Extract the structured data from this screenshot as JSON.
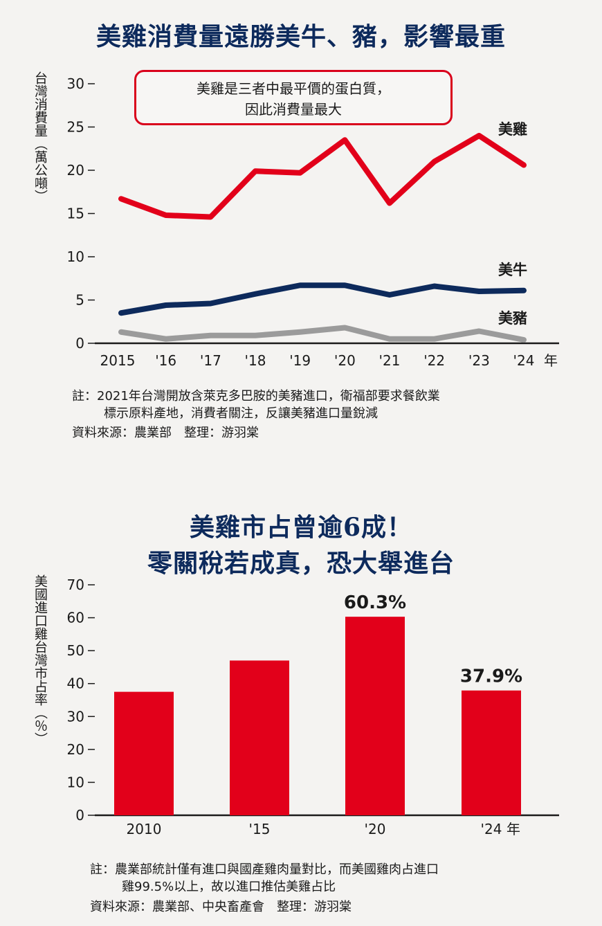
{
  "chart1": {
    "title": "美雞消費量遠勝美牛、豬，影響最重",
    "ylabel": "台灣消費量（萬公噸）",
    "annotation_line1": "美雞是三者中最平價的蛋白質，",
    "annotation_line2": "因此消費量最大",
    "note_line1": "註：2021年台灣開放含萊克多巴胺的美豬進口，衛福部要求餐飲業",
    "note_line2": "標示原料產地，消費者關注，反讓美豬進口量銳減",
    "source": "資料來源：農業部　整理：游羽棠",
    "colors": {
      "chicken": "#e2001a",
      "beef": "#0d2a5c",
      "pork": "#9b9b9b"
    }
  },
  "chart2": {
    "title_line1": "美雞市占曾逾6成！",
    "title_line2": "零關稅若成真，恐大舉進台",
    "ylabel": "美國進口雞台灣市占率（％）",
    "note_line1": "註：農業部統計僅有進口與國產雞肉量對比，而美國雞肉占進口",
    "note_line2": "雞99.5%以上，故以進口推估美雞占比",
    "source": "資料來源：農業部、中央畜產會　整理：游羽棠",
    "bar_color": "#e2001a"
  },
  "chart_data": [
    {
      "type": "line",
      "title": "美雞消費量遠勝美牛、豬，影響最重",
      "ylabel": "台灣消費量（萬公噸）",
      "xlabel": "年",
      "x": [
        "2015",
        "'16",
        "'17",
        "'18",
        "'19",
        "'20",
        "'21",
        "'22",
        "'23",
        "'24"
      ],
      "ylim": [
        0,
        30
      ],
      "yticks": [
        0,
        5,
        10,
        15,
        20,
        25,
        30
      ],
      "series": [
        {
          "name": "美雞",
          "values": [
            16.7,
            14.8,
            14.6,
            19.9,
            19.7,
            23.5,
            16.2,
            21.0,
            24.0,
            20.6
          ]
        },
        {
          "name": "美牛",
          "values": [
            3.5,
            4.4,
            4.6,
            5.7,
            6.7,
            6.7,
            5.6,
            6.6,
            6.0,
            6.1
          ]
        },
        {
          "name": "美豬",
          "values": [
            1.3,
            0.5,
            0.9,
            0.9,
            1.3,
            1.8,
            0.5,
            0.5,
            1.4,
            0.4
          ]
        }
      ]
    },
    {
      "type": "bar",
      "title": "美雞市占曾逾6成！零關稅若成真，恐大舉進台",
      "ylabel": "美國進口雞台灣市占率（％）",
      "xlabel": "年",
      "categories": [
        "2010",
        "'15",
        "'20",
        "'24"
      ],
      "values": [
        37.5,
        47.0,
        60.3,
        37.9
      ],
      "data_labels": [
        "",
        "",
        "60.3%",
        "37.9%"
      ],
      "ylim": [
        0,
        70
      ],
      "yticks": [
        0,
        10,
        20,
        30,
        40,
        50,
        60,
        70
      ]
    }
  ]
}
